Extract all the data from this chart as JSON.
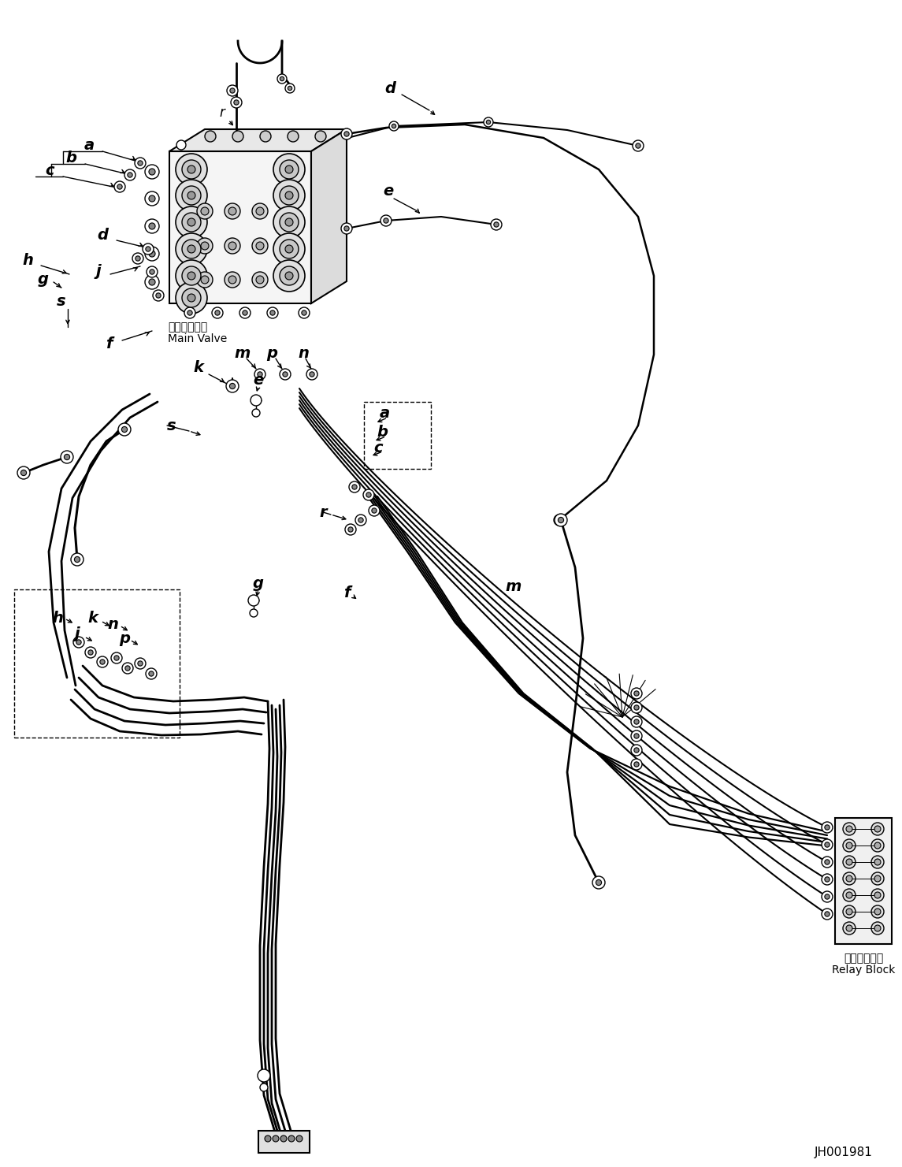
{
  "bg_color": "#ffffff",
  "fig_width": 11.45,
  "fig_height": 14.81,
  "dpi": 100,
  "part_number": "JH001981",
  "main_valve_jp": "メインバルブ",
  "main_valve_en": "Main Valve",
  "relay_block_jp": "中継ブロック",
  "relay_block_en": "Relay Block"
}
